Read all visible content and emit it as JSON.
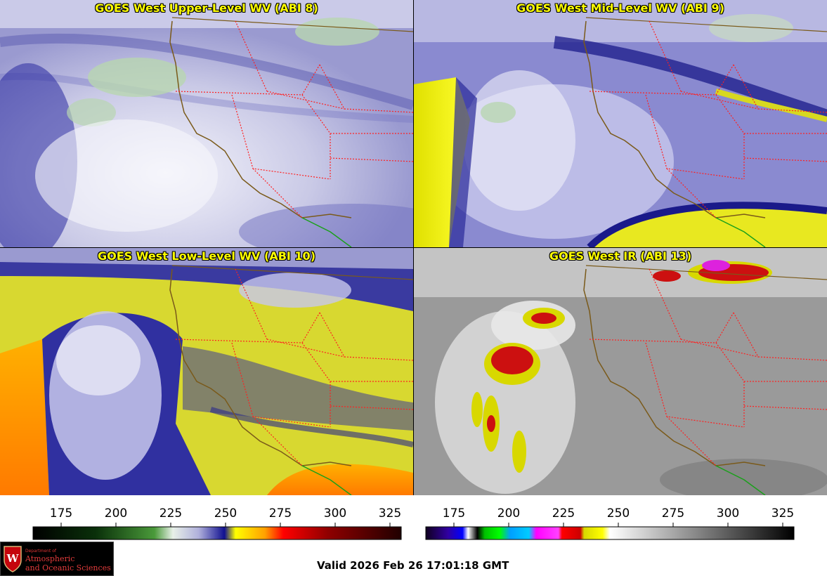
{
  "panels": [
    {
      "title": "GOES West Upper-Level WV (ABI 8)"
    },
    {
      "title": "GOES West Mid-Level WV (ABI 9)"
    },
    {
      "title": "GOES West Low-Level WV (ABI 10)"
    },
    {
      "title": "GOES West IR (ABI 13)"
    }
  ],
  "colorbars": {
    "wv": {
      "ticks": [
        "175",
        "200",
        "225",
        "250",
        "275",
        "300",
        "325"
      ]
    },
    "ir": {
      "ticks": [
        "175",
        "200",
        "225",
        "250",
        "275",
        "300",
        "325"
      ]
    }
  },
  "logo": {
    "small": "Department of",
    "line1": "Atmospheric",
    "line2": "and Oceanic Sciences",
    "shield_letter": "W"
  },
  "valid_time": "Valid 2026 Feb 26 17:01:18 GMT",
  "colors": {
    "title_text": "#ffff00",
    "state_borders": "#ff2020",
    "coastline": "#7a5a1a",
    "mexico_border": "#1aa01a"
  }
}
